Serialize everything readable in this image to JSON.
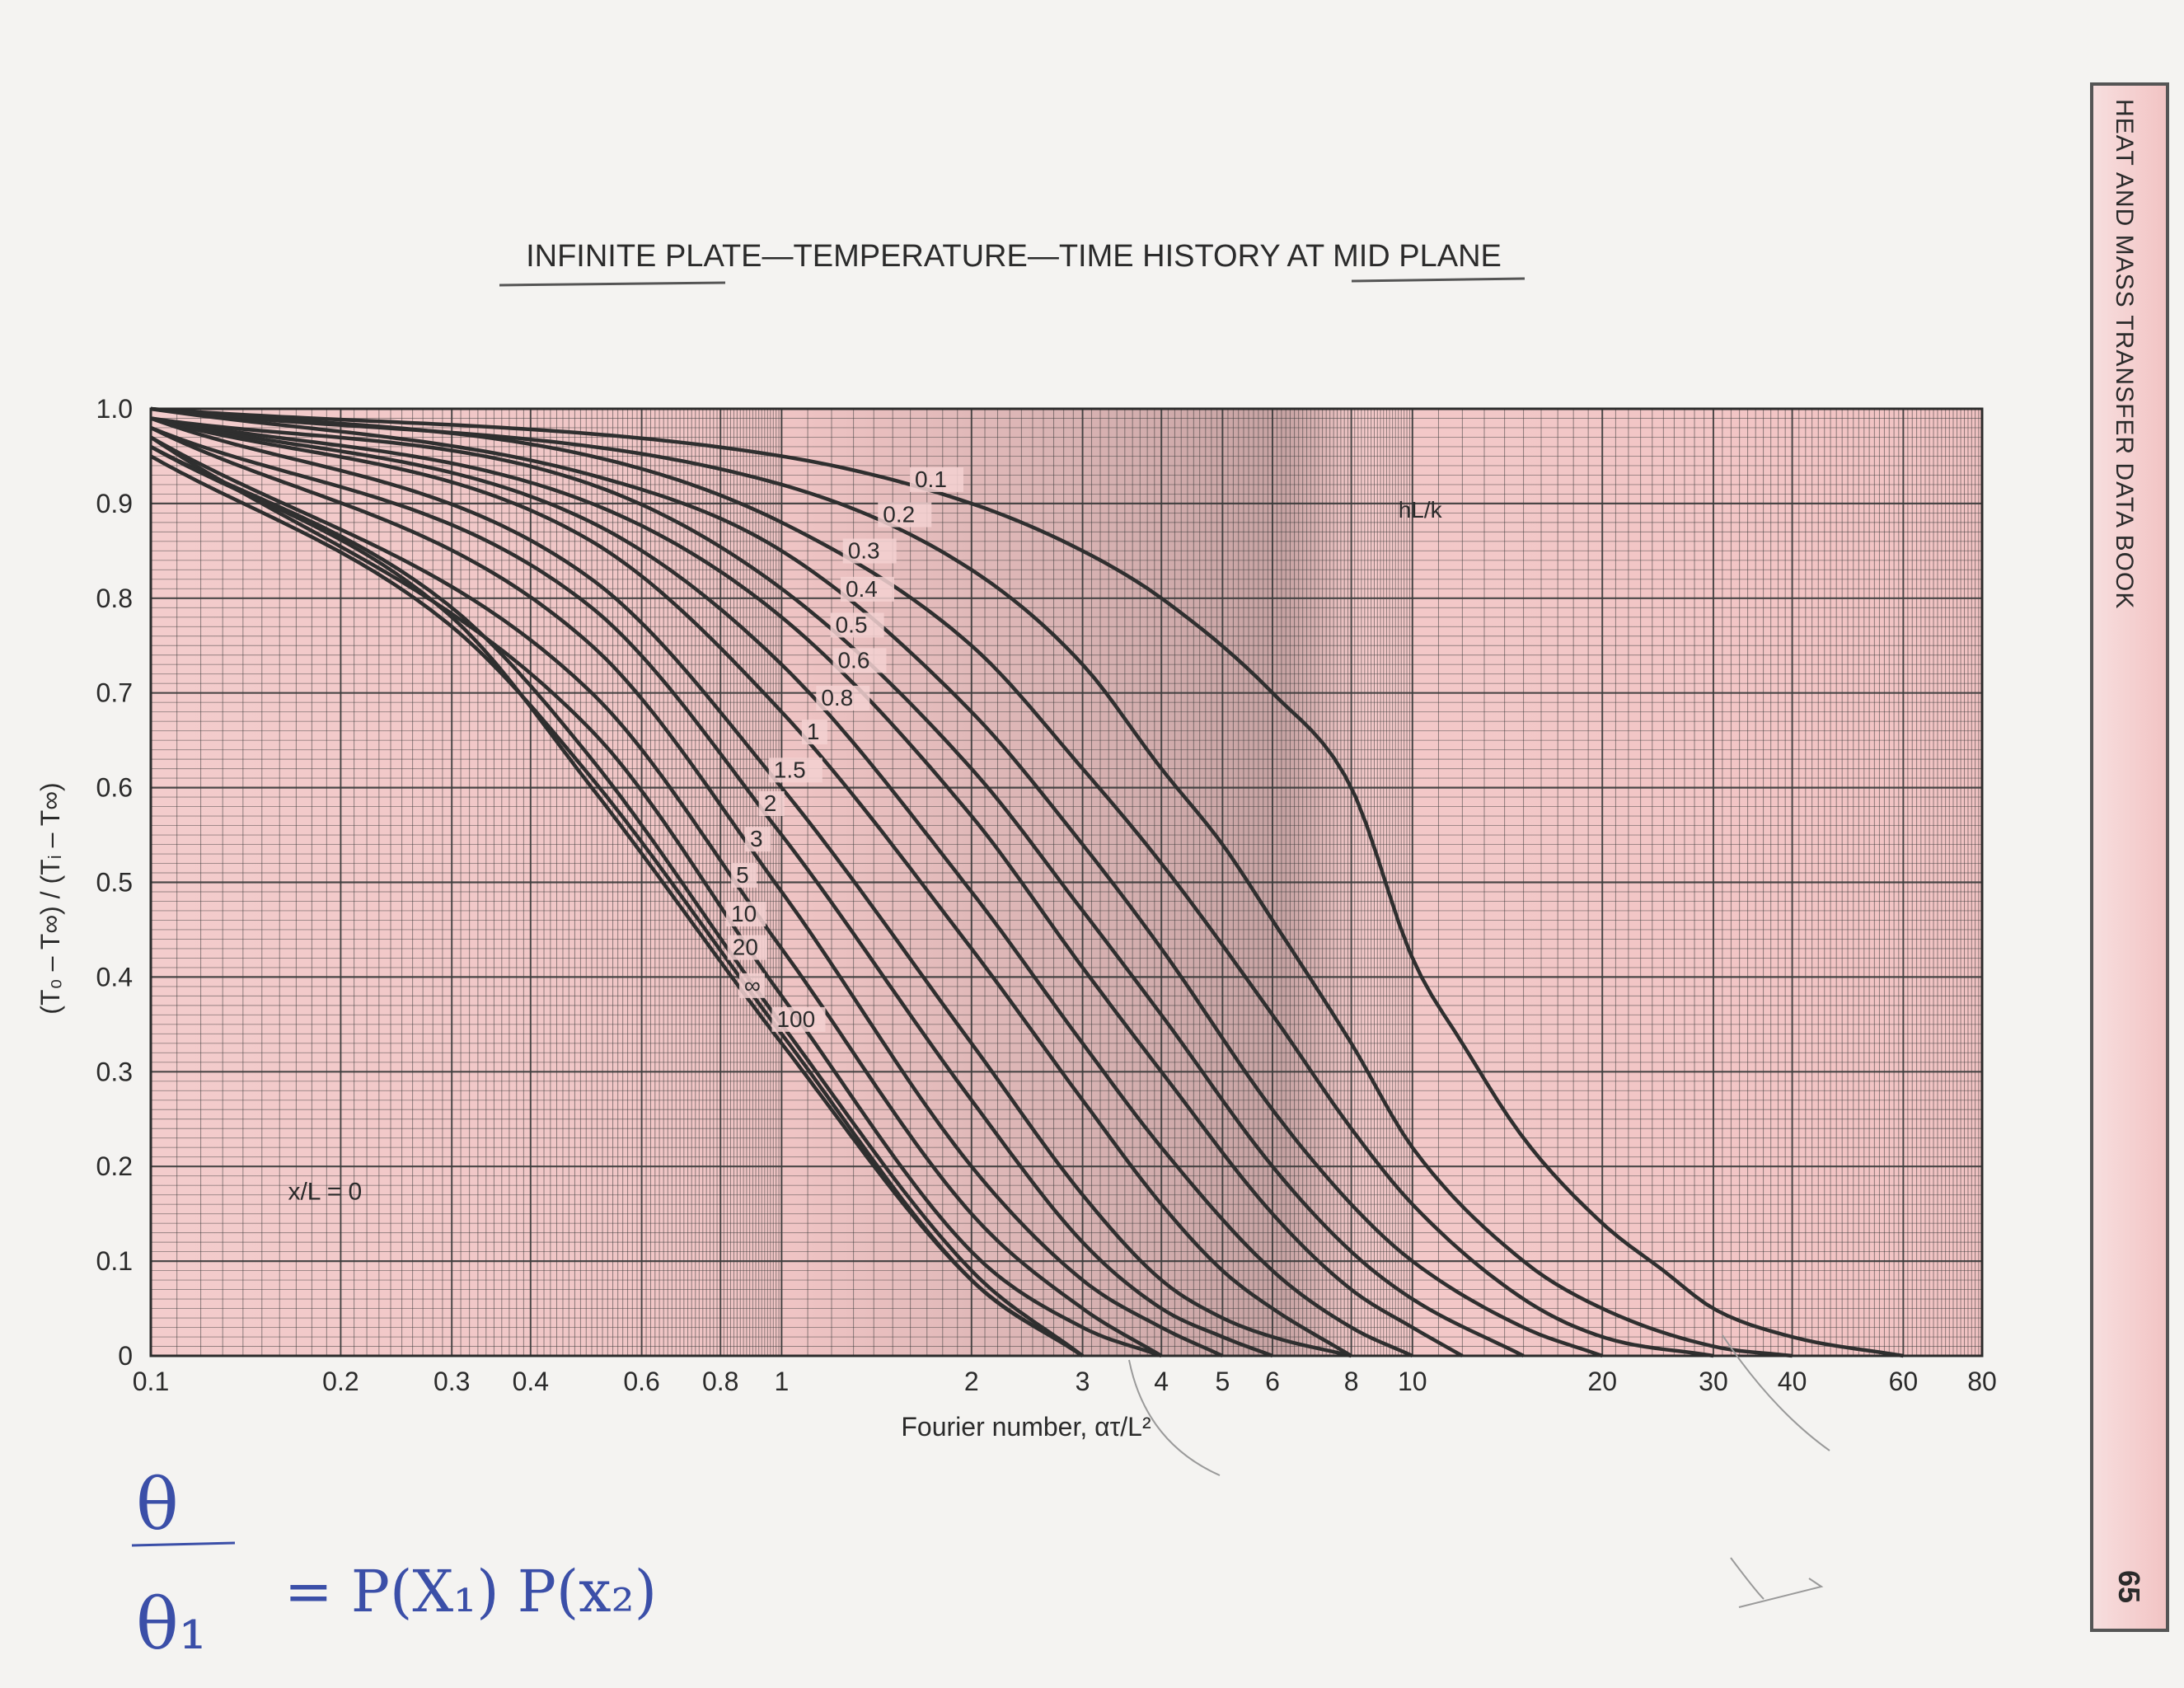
{
  "page": {
    "side_title": "HEAT AND MASS TRANSFER DATA BOOK",
    "page_number": "65"
  },
  "handwriting": {
    "theta": "θ",
    "theta1": "θ₁",
    "equation": "= P(X₁) P(x₂)"
  },
  "colors": {
    "plot_bg": "#f2c9c9",
    "plot_bg_dark": "#c9a7a7",
    "grid": "#3a3a3a",
    "curve": "#2f2f2f",
    "ink": "#3b4fa8"
  },
  "chart_data": {
    "type": "line",
    "title": "INFINITE PLATE—TEMPERATURE—TIME HISTORY AT MID PLANE",
    "xlabel": "Fourier number, ατ/L²",
    "ylabel": "(T₀ – T∞) / (Tᵢ – T∞)",
    "x_scale": "log",
    "xlim": [
      0.1,
      80
    ],
    "ylim": [
      0,
      1.0
    ],
    "x_ticks": [
      0.1,
      0.2,
      0.3,
      0.4,
      0.6,
      0.8,
      1,
      2,
      3,
      4,
      5,
      6,
      8,
      10,
      20,
      30,
      40,
      60,
      80
    ],
    "x_tick_labels": [
      "0.1",
      "0.2",
      "0.3",
      "0.4",
      "0.6",
      "0.8",
      "1",
      "2",
      "3",
      "4",
      "5",
      "6",
      "8",
      "10",
      "20",
      "30",
      "40",
      "60",
      "80"
    ],
    "y_ticks": [
      0,
      0.1,
      0.2,
      0.3,
      0.4,
      0.5,
      0.6,
      0.7,
      0.8,
      0.9,
      1.0
    ],
    "y_tick_labels": [
      "0",
      "0.1",
      "0.2",
      "0.3",
      "0.4",
      "0.5",
      "0.6",
      "0.7",
      "0.8",
      "0.9",
      "1.0"
    ],
    "grid": true,
    "parameter_label": "hL/k",
    "annotation": "x/L = 0",
    "series": [
      {
        "name": "0.1",
        "x": [
          0.1,
          1,
          2,
          3,
          4,
          6,
          8,
          10,
          12,
          15,
          20,
          25,
          30,
          40,
          60
        ],
        "y": [
          1.0,
          0.95,
          0.9,
          0.85,
          0.8,
          0.7,
          0.6,
          0.42,
          0.33,
          0.23,
          0.14,
          0.09,
          0.05,
          0.02,
          0.0
        ]
      },
      {
        "name": "0.2",
        "x": [
          0.1,
          1,
          2,
          3,
          4,
          5,
          6,
          8,
          10,
          15,
          20,
          30,
          40
        ],
        "y": [
          1.0,
          0.92,
          0.83,
          0.73,
          0.62,
          0.54,
          0.46,
          0.33,
          0.22,
          0.1,
          0.05,
          0.01,
          0.0
        ]
      },
      {
        "name": "0.3",
        "x": [
          0.1,
          0.5,
          1,
          2,
          3,
          4,
          6,
          8,
          10,
          15,
          20,
          30
        ],
        "y": [
          1.0,
          0.95,
          0.88,
          0.75,
          0.62,
          0.52,
          0.36,
          0.24,
          0.16,
          0.06,
          0.02,
          0.0
        ]
      },
      {
        "name": "0.4",
        "x": [
          0.1,
          0.5,
          1,
          2,
          3,
          4,
          6,
          8,
          10,
          15,
          20
        ],
        "y": [
          1.0,
          0.93,
          0.85,
          0.68,
          0.54,
          0.43,
          0.26,
          0.16,
          0.1,
          0.03,
          0.0
        ]
      },
      {
        "name": "0.5",
        "x": [
          0.1,
          0.5,
          1,
          2,
          3,
          4,
          6,
          8,
          10,
          15
        ],
        "y": [
          0.99,
          0.92,
          0.81,
          0.62,
          0.47,
          0.36,
          0.2,
          0.11,
          0.06,
          0.0
        ]
      },
      {
        "name": "0.6",
        "x": [
          0.1,
          0.5,
          1,
          2,
          3,
          4,
          6,
          8,
          10,
          12
        ],
        "y": [
          0.99,
          0.9,
          0.78,
          0.57,
          0.41,
          0.3,
          0.15,
          0.07,
          0.03,
          0.0
        ]
      },
      {
        "name": "0.8",
        "x": [
          0.1,
          0.5,
          1,
          2,
          3,
          4,
          6,
          8,
          10
        ],
        "y": [
          0.99,
          0.88,
          0.73,
          0.49,
          0.33,
          0.22,
          0.09,
          0.03,
          0.0
        ]
      },
      {
        "name": "1",
        "x": [
          0.1,
          0.5,
          1,
          2,
          3,
          4,
          5,
          6,
          8
        ],
        "y": [
          0.99,
          0.86,
          0.68,
          0.43,
          0.27,
          0.16,
          0.09,
          0.05,
          0.0
        ]
      },
      {
        "name": "1.5",
        "x": [
          0.1,
          0.5,
          1,
          2,
          3,
          4,
          5,
          6,
          8
        ],
        "y": [
          0.99,
          0.82,
          0.6,
          0.33,
          0.17,
          0.08,
          0.04,
          0.02,
          0.0
        ]
      },
      {
        "name": "2",
        "x": [
          0.1,
          0.5,
          1,
          2,
          3,
          4,
          5,
          6
        ],
        "y": [
          0.98,
          0.79,
          0.55,
          0.27,
          0.12,
          0.05,
          0.02,
          0.0
        ]
      },
      {
        "name": "3",
        "x": [
          0.1,
          0.5,
          1,
          2,
          3,
          4,
          5
        ],
        "y": [
          0.98,
          0.75,
          0.49,
          0.2,
          0.08,
          0.03,
          0.0
        ]
      },
      {
        "name": "5",
        "x": [
          0.1,
          0.5,
          1,
          2,
          3,
          4
        ],
        "y": [
          0.97,
          0.7,
          0.43,
          0.15,
          0.05,
          0.0
        ]
      },
      {
        "name": "10",
        "x": [
          0.1,
          0.5,
          1,
          2,
          3,
          4
        ],
        "y": [
          0.97,
          0.66,
          0.38,
          0.11,
          0.03,
          0.0
        ]
      },
      {
        "name": "20",
        "x": [
          0.1,
          0.3,
          0.5,
          1,
          2,
          3
        ],
        "y": [
          0.96,
          0.79,
          0.63,
          0.35,
          0.09,
          0.0
        ]
      },
      {
        "name": "∞",
        "x": [
          0.1,
          0.3,
          0.5,
          1,
          2,
          3
        ],
        "y": [
          0.96,
          0.78,
          0.6,
          0.33,
          0.08,
          0.0
        ]
      },
      {
        "name": "100",
        "x": [
          0.1,
          0.3,
          0.5,
          1,
          2,
          3
        ],
        "y": [
          0.95,
          0.77,
          0.61,
          0.34,
          0.08,
          0.0
        ]
      }
    ]
  }
}
